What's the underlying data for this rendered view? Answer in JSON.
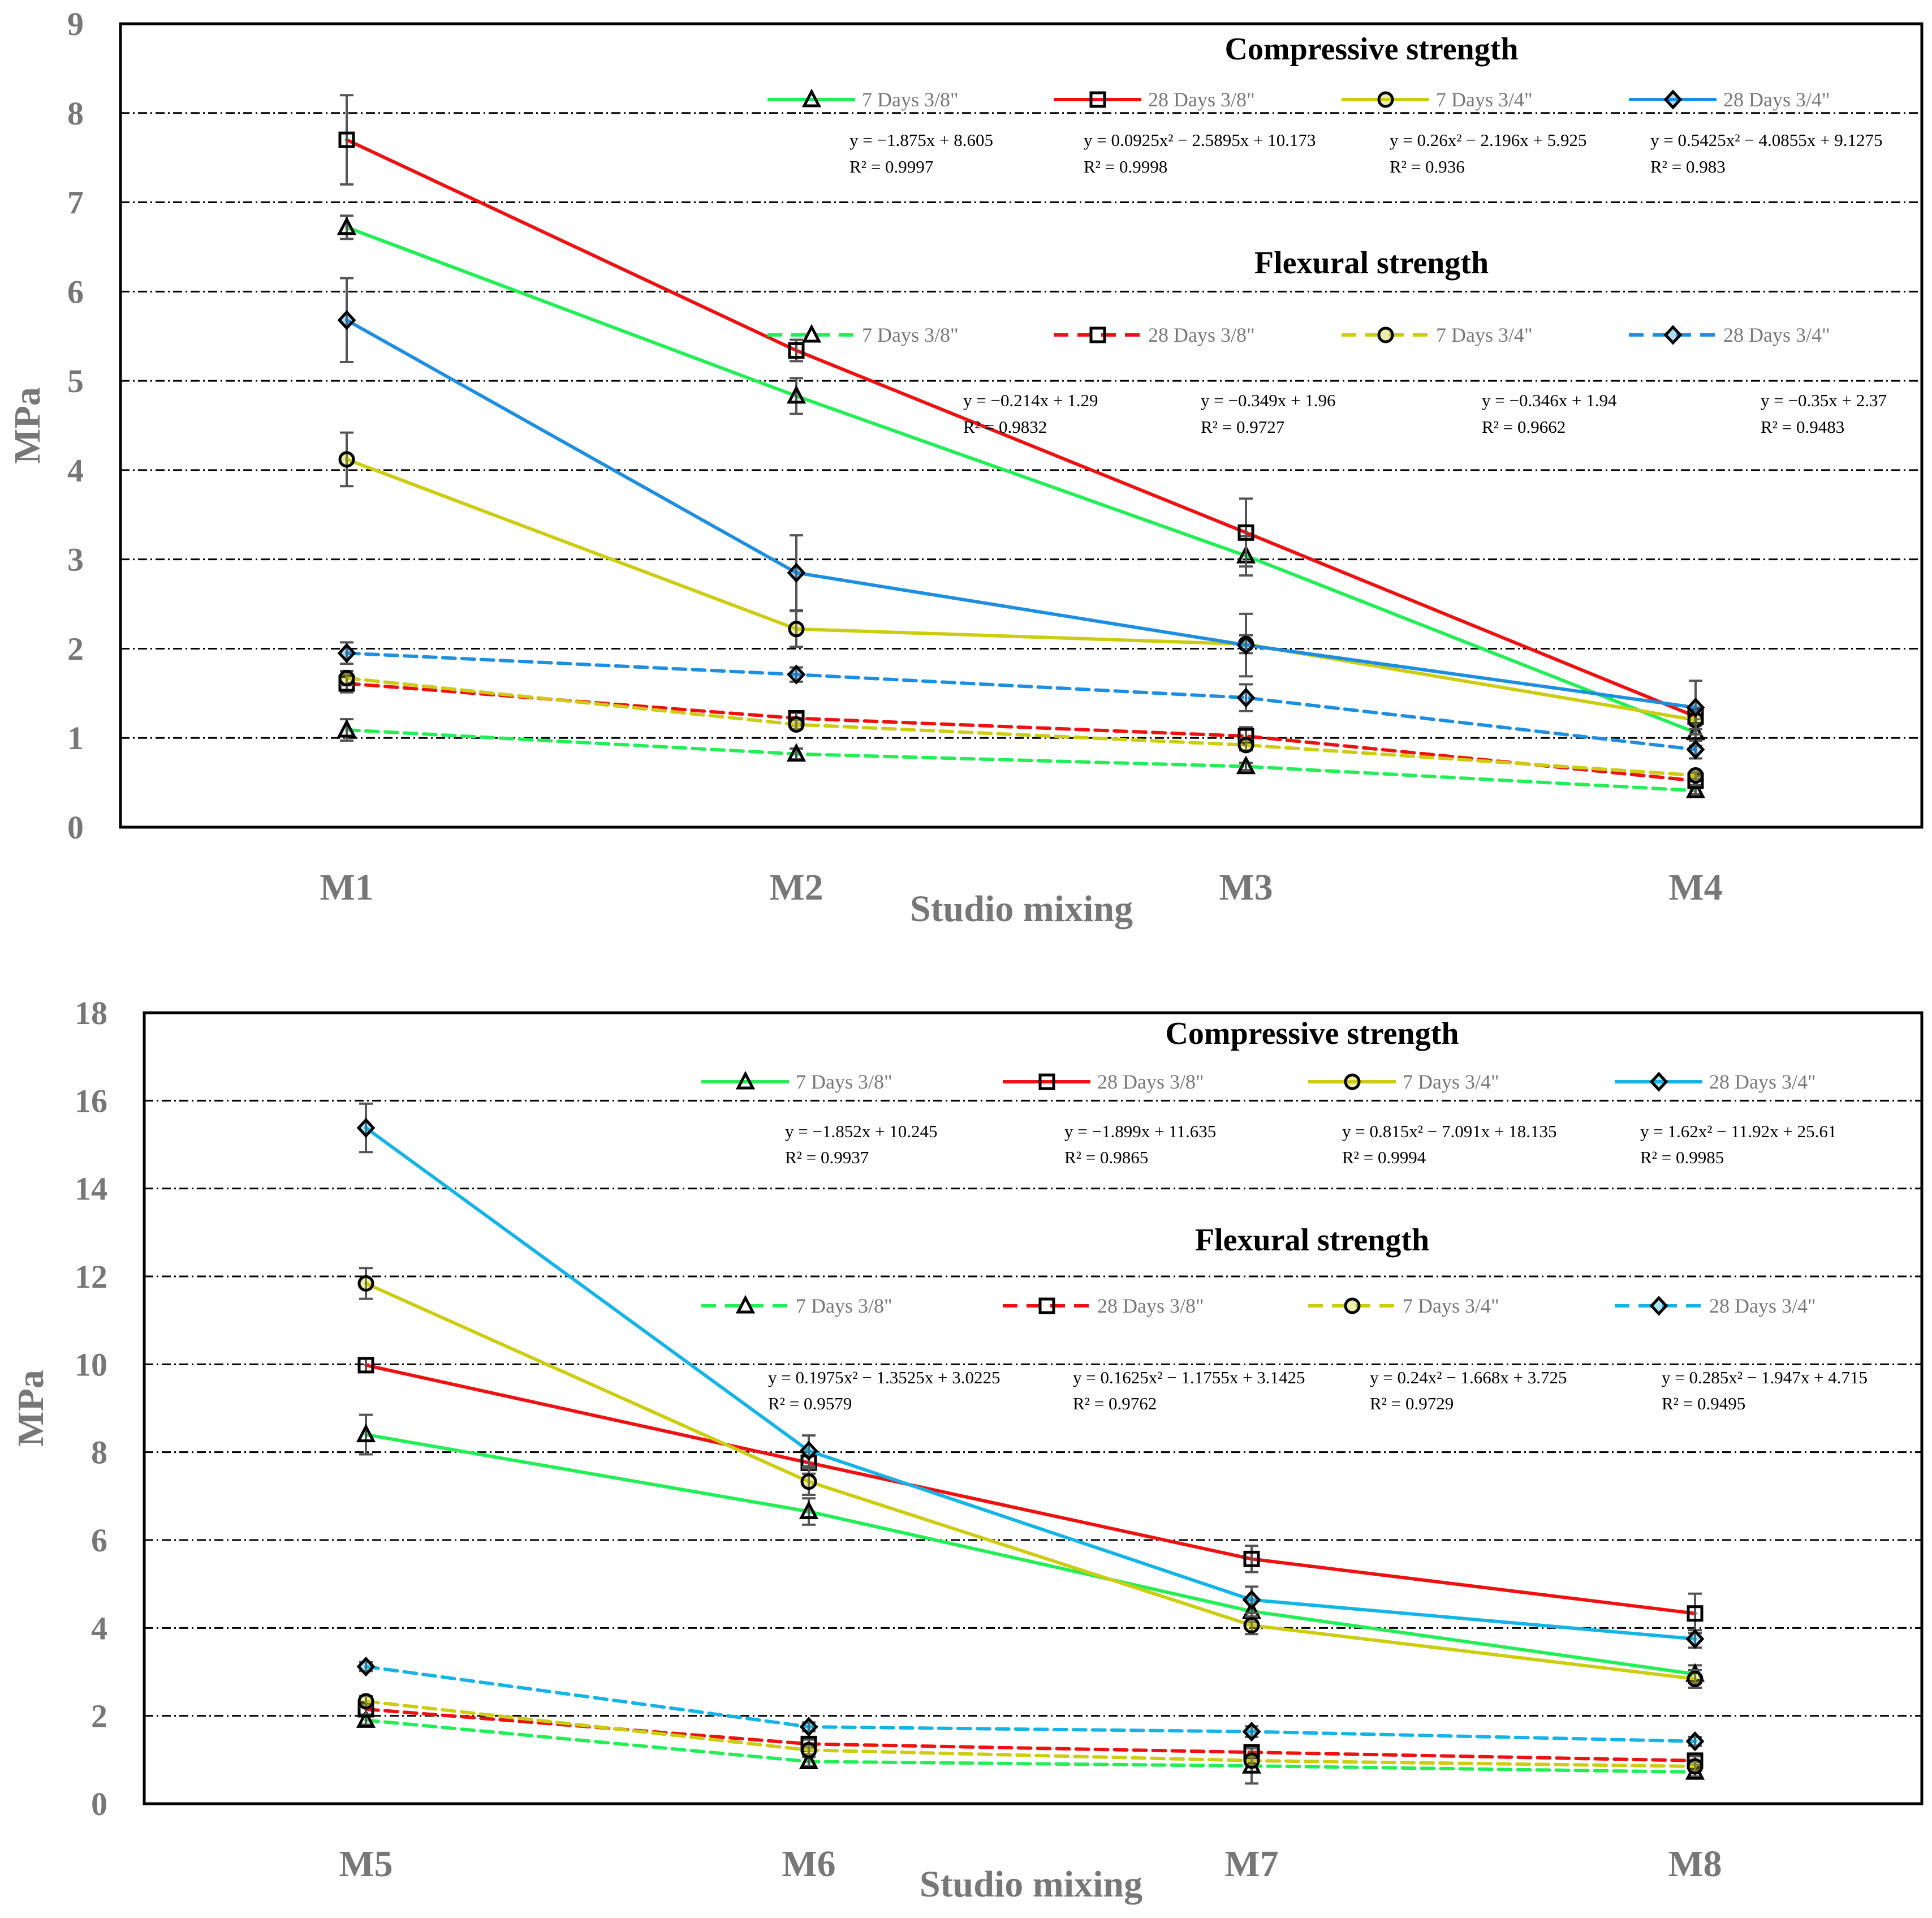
{
  "chart_data": [
    {
      "type": "line",
      "xlabel": "Studio mixing",
      "ylabel": "MPa",
      "ylim": [
        0,
        9
      ],
      "yticks": [
        "0",
        "1",
        "2",
        "3",
        "4",
        "5",
        "6",
        "7",
        "8",
        "9"
      ],
      "categories": [
        "M1",
        "M2",
        "M3",
        "M4"
      ],
      "grid": true,
      "groups": [
        {
          "title": "Compressive strength",
          "line_style": "solid",
          "series": [
            {
              "name": "7 Days 3/8\"",
              "color": "#22ee55",
              "marker": "triangle",
              "values": [
                6.72,
                4.83,
                3.04,
                1.06
              ],
              "errors": [
                0.13,
                0.2,
                0.22,
                0.15
              ],
              "equation": "y = −1.875x + 8.605",
              "r2": "R² = 0.9997"
            },
            {
              "name": "28 Days 3/8\"",
              "color": "#ee1111",
              "marker": "square",
              "values": [
                7.7,
                5.34,
                3.3,
                1.24
              ],
              "errors": [
                0.5,
                0.12,
                0.38,
                0.1
              ],
              "equation": "y = 0.0925x² − 2.5895x + 10.173",
              "r2": "R² = 0.9998"
            },
            {
              "name": "7 Days 3/4\"",
              "color": "#cccc11",
              "marker": "circle",
              "values": [
                4.12,
                2.22,
                2.05,
                1.2
              ],
              "errors": [
                0.3,
                0.2,
                0.1,
                0.1
              ],
              "equation": "y = 0.26x² − 2.196x + 5.925",
              "r2": "R² = 0.936"
            },
            {
              "name": "28 Days 3/4\"",
              "color": "#1e8fe0",
              "marker": "diamond",
              "values": [
                5.68,
                2.85,
                2.04,
                1.34
              ],
              "errors": [
                0.47,
                0.42,
                0.35,
                0.3
              ],
              "equation": "y = 0.5425x² − 4.0855x + 9.1275",
              "r2": "R² = 0.983"
            }
          ]
        },
        {
          "title": "Flexural strength",
          "line_style": "dashed",
          "series": [
            {
              "name": "7 Days 3/8\"",
              "color": "#22ee55",
              "marker": "triangle",
              "values": [
                1.09,
                0.82,
                0.68,
                0.41
              ],
              "errors": [
                0.12,
                0.06,
                0.04,
                0.04
              ],
              "equation": "y = −0.214x + 1.29",
              "r2": "R² = 0.9832"
            },
            {
              "name": "28 Days 3/8\"",
              "color": "#ee1111",
              "marker": "square",
              "values": [
                1.61,
                1.22,
                1.02,
                0.52
              ],
              "errors": [
                0.1,
                0.06,
                0.1,
                0.05
              ],
              "equation": "y = −0.349x + 1.96",
              "r2": "R² = 0.9727"
            },
            {
              "name": "7 Days 3/4\"",
              "color": "#cccc11",
              "marker": "circle",
              "values": [
                1.67,
                1.15,
                0.92,
                0.58
              ],
              "errors": [
                0.08,
                0.05,
                0.06,
                0.04
              ],
              "equation": "y = −0.346x + 1.94",
              "r2": "R² = 0.9662"
            },
            {
              "name": "28 Days 3/4\"",
              "color": "#1e8fe0",
              "marker": "diamond",
              "values": [
                1.95,
                1.71,
                1.45,
                0.87
              ],
              "errors": [
                0.12,
                0.08,
                0.15,
                0.1
              ],
              "equation": "y = −0.35x + 2.37",
              "r2": "R² = 0.9483"
            }
          ]
        }
      ]
    },
    {
      "type": "line",
      "xlabel": "Studio mixing",
      "ylabel": "MPa",
      "ylim": [
        0,
        18
      ],
      "yticks": [
        "0",
        "2",
        "4",
        "6",
        "8",
        "10",
        "12",
        "14",
        "16",
        "18"
      ],
      "categories": [
        "M5",
        "M6",
        "M7",
        "M8"
      ],
      "grid": true,
      "groups": [
        {
          "title": "Compressive strength",
          "line_style": "solid",
          "series": [
            {
              "name": "7 Days 3/8\"",
              "color": "#22ee55",
              "marker": "triangle",
              "values": [
                8.4,
                6.65,
                4.38,
                2.95
              ],
              "errors": [
                0.45,
                0.3,
                0.25,
                0.2
              ],
              "equation": "y = −1.852x + 10.245",
              "r2": "R² = 0.9937"
            },
            {
              "name": "28 Days 3/8\"",
              "color": "#ee1111",
              "marker": "square",
              "values": [
                9.98,
                7.76,
                5.57,
                4.33
              ],
              "errors": [
                0.15,
                0.25,
                0.3,
                0.45
              ],
              "equation": "y = −1.899x + 11.635",
              "r2": "R² = 0.9865"
            },
            {
              "name": "7 Days 3/4\"",
              "color": "#cccc11",
              "marker": "circle",
              "values": [
                11.84,
                7.33,
                4.06,
                2.84
              ],
              "errors": [
                0.35,
                0.3,
                0.2,
                0.2
              ],
              "equation": "y = 0.815x² − 7.091x + 18.135",
              "r2": "R² = 0.9994"
            },
            {
              "name": "28 Days 3/4\"",
              "color": "#14b4e6",
              "marker": "diamond",
              "values": [
                15.38,
                8.03,
                4.64,
                3.75
              ],
              "errors": [
                0.55,
                0.35,
                0.3,
                0.2
              ],
              "equation": "y = 1.62x² − 11.92x + 25.61",
              "r2": "R² = 0.9985"
            }
          ]
        },
        {
          "title": "Flexural strength",
          "line_style": "dashed",
          "series": [
            {
              "name": "7 Days 3/8\"",
              "color": "#22ee55",
              "marker": "triangle",
              "values": [
                1.9,
                0.96,
                0.86,
                0.72
              ],
              "errors": [
                0.1,
                0.1,
                0.4,
                0.1
              ],
              "equation": "y = 0.1975x² − 1.3525x + 3.0225",
              "r2": "R² = 0.9579"
            },
            {
              "name": "28 Days 3/8\"",
              "color": "#ee1111",
              "marker": "square",
              "values": [
                2.15,
                1.36,
                1.17,
                0.98
              ],
              "errors": [
                0.12,
                0.1,
                0.1,
                0.1
              ],
              "equation": "y = 0.1625x² − 1.1755x + 3.1425",
              "r2": "R² = 0.9762"
            },
            {
              "name": "7 Days 3/4\"",
              "color": "#cccc11",
              "marker": "circle",
              "values": [
                2.33,
                1.22,
                0.98,
                0.85
              ],
              "errors": [
                0.12,
                0.1,
                0.1,
                0.1
              ],
              "equation": "y = 0.24x² − 1.668x + 3.725",
              "r2": "R² = 0.9729"
            },
            {
              "name": "28 Days 3/4\"",
              "color": "#14b4e6",
              "marker": "diamond",
              "values": [
                3.12,
                1.75,
                1.64,
                1.42
              ],
              "errors": [
                0.1,
                0.1,
                0.12,
                0.1
              ],
              "equation": "y = 0.285x² − 1.947x + 4.715",
              "r2": "R² = 0.9495"
            }
          ]
        }
      ]
    }
  ]
}
